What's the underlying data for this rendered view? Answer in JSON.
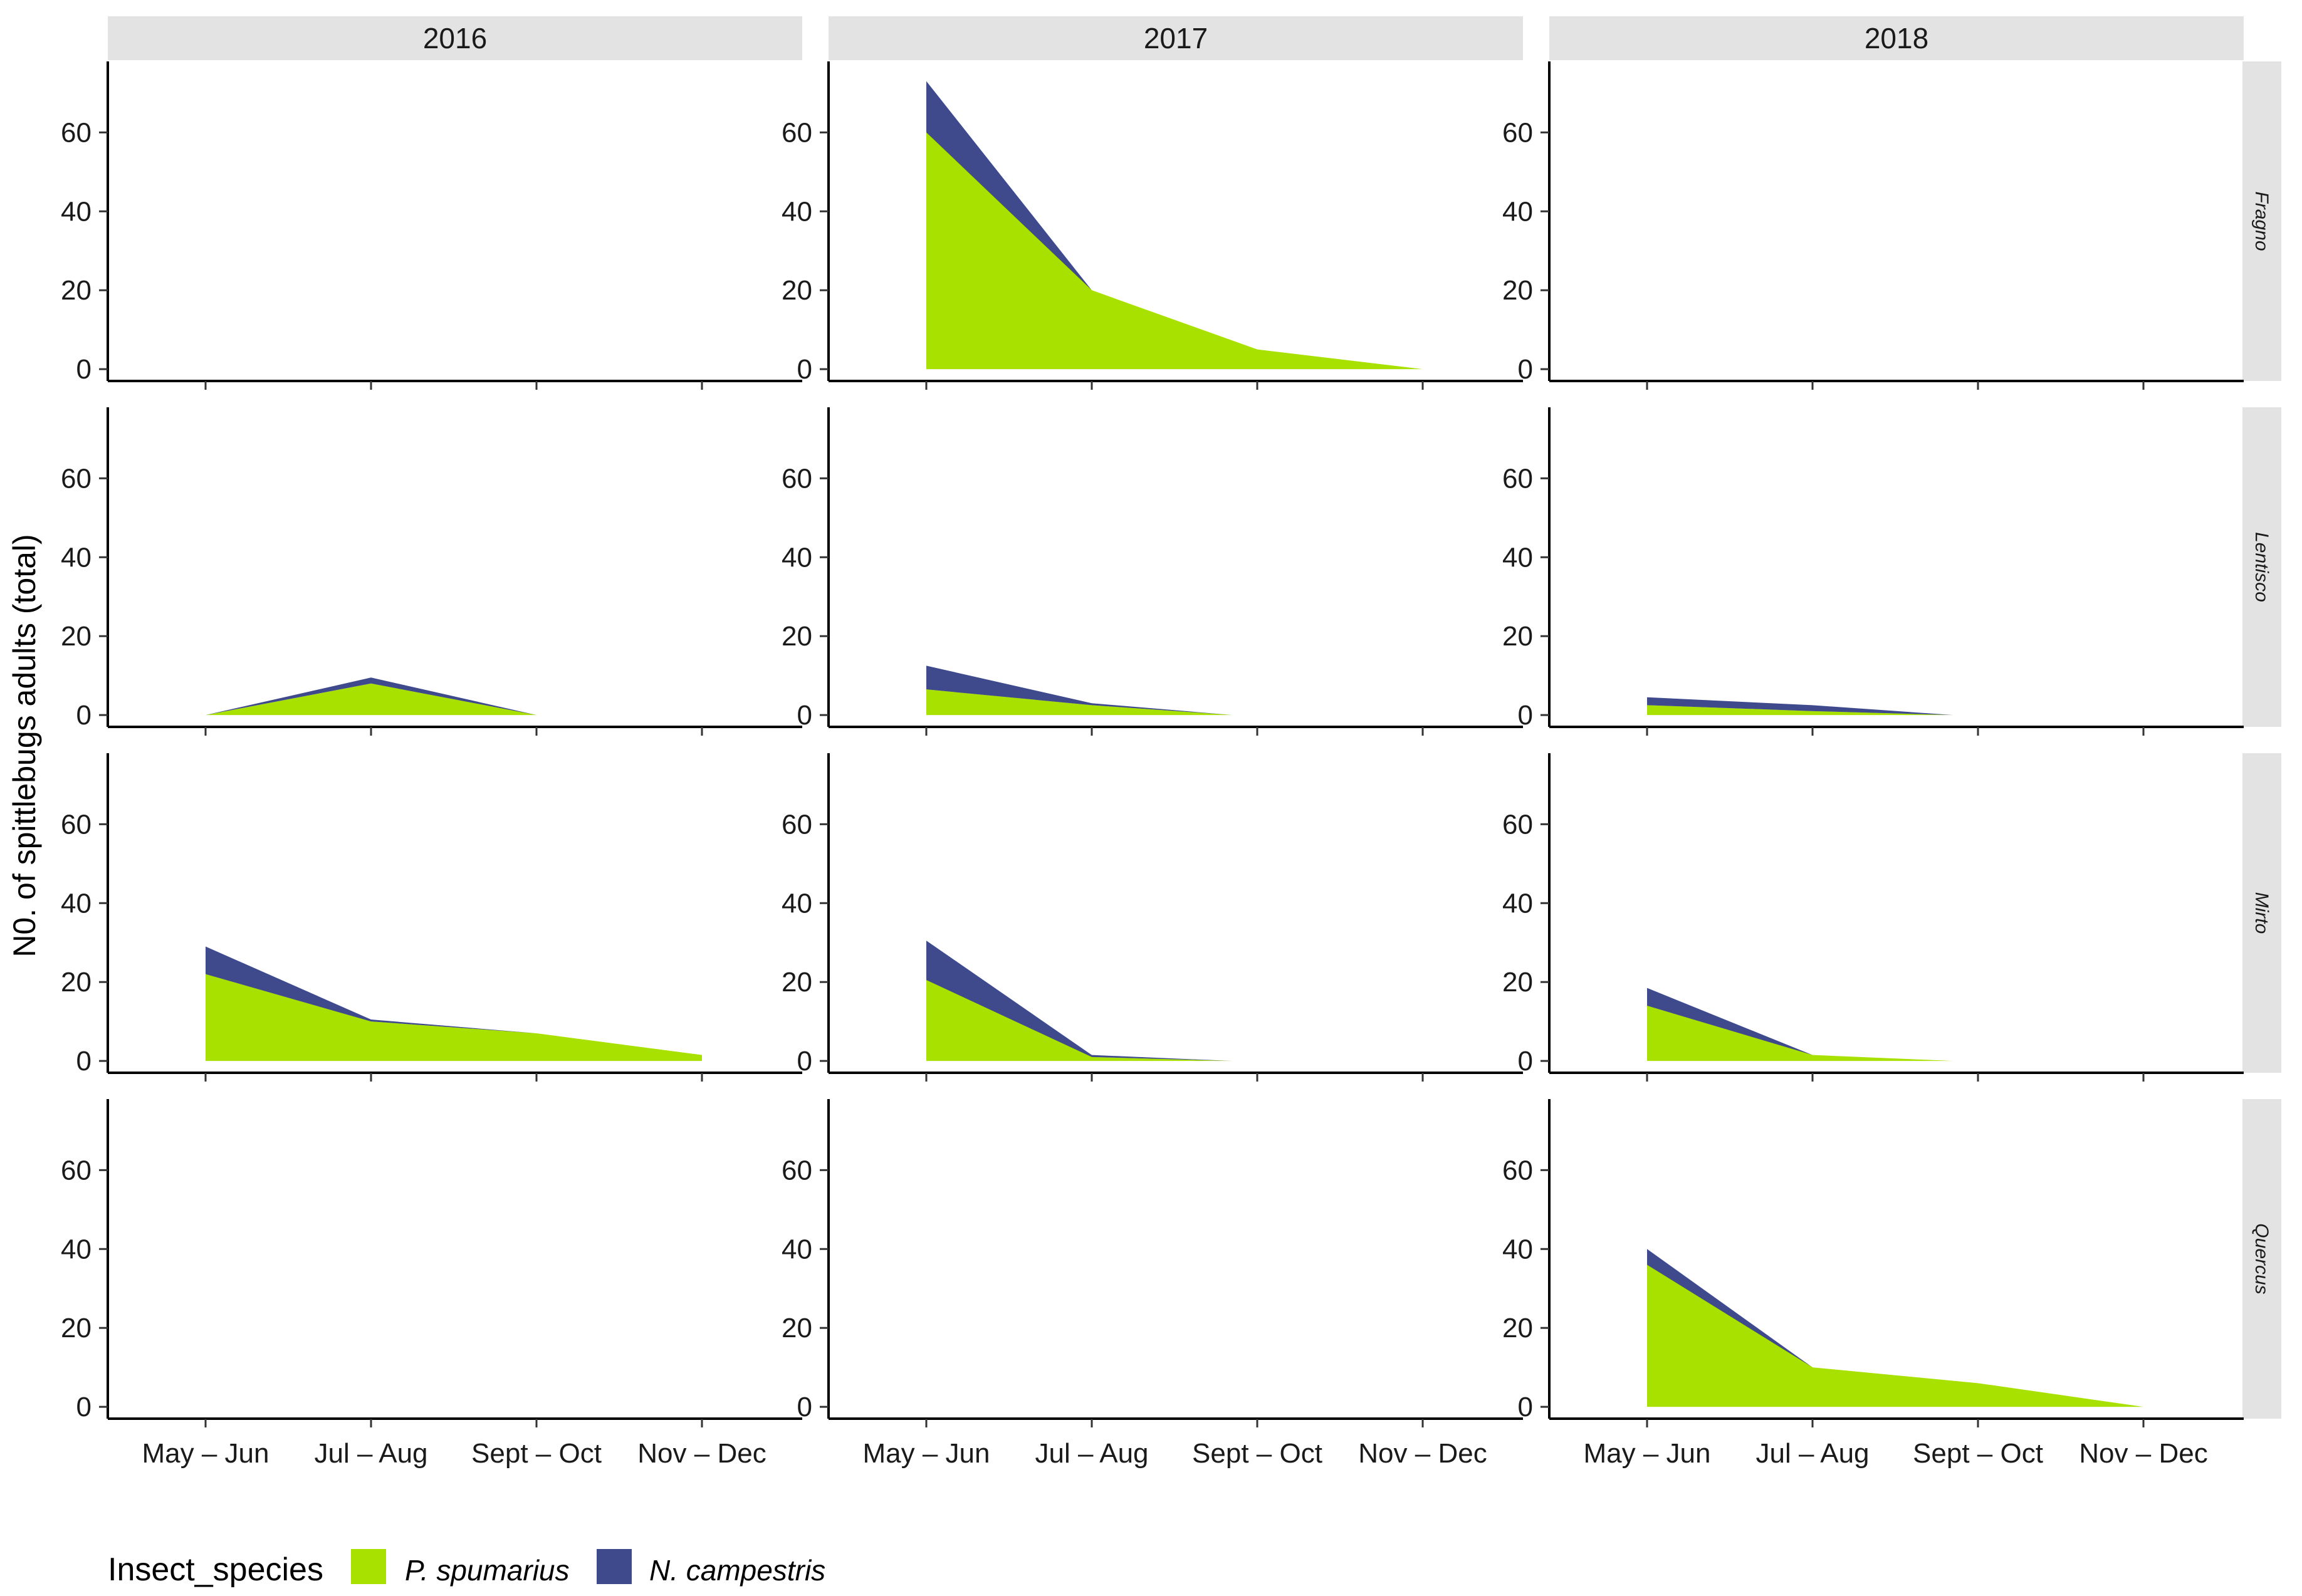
{
  "chart_data": {
    "type": "area",
    "stacked": true,
    "ylabel": "N0. of spittlebugs adults (total)",
    "xlabel": "",
    "categories": [
      "May – Jun",
      "Jul – Aug",
      "Sept – Oct",
      "Nov – Dec"
    ],
    "yticks": [
      0,
      20,
      40,
      60
    ],
    "ylim": [
      -3,
      78
    ],
    "facet_cols": [
      "2016",
      "2017",
      "2018"
    ],
    "facet_rows": [
      "Fragno",
      "Lentisco",
      "Mirto",
      "Quercus"
    ],
    "legend": {
      "title": "Insect_species",
      "position": "bottom-left",
      "items": [
        {
          "name": "P. spumarius",
          "color": "#a8e000"
        },
        {
          "name": "N. campestris",
          "color": "#3f4a8c"
        }
      ]
    },
    "panels": [
      {
        "row": "Fragno",
        "col": "2016",
        "series": []
      },
      {
        "row": "Fragno",
        "col": "2017",
        "series": [
          {
            "name": "P. spumarius",
            "x": [
              1,
              2,
              3,
              4
            ],
            "values": [
              60,
              20,
              5,
              0
            ]
          },
          {
            "name": "N. campestris",
            "x": [
              1,
              2,
              3,
              4
            ],
            "values": [
              13,
              0,
              0,
              0
            ]
          }
        ]
      },
      {
        "row": "Fragno",
        "col": "2018",
        "series": []
      },
      {
        "row": "Lentisco",
        "col": "2016",
        "series": [
          {
            "name": "P. spumarius",
            "x": [
              1,
              2,
              3
            ],
            "values": [
              0,
              8,
              0
            ]
          },
          {
            "name": "N. campestris",
            "x": [
              1,
              2,
              3
            ],
            "values": [
              0,
              1.5,
              0
            ]
          }
        ]
      },
      {
        "row": "Lentisco",
        "col": "2017",
        "series": [
          {
            "name": "P. spumarius",
            "x": [
              1,
              2,
              2.85
            ],
            "values": [
              6.5,
              2.5,
              0
            ]
          },
          {
            "name": "N. campestris",
            "x": [
              1,
              2,
              2.85
            ],
            "values": [
              6,
              0.5,
              0
            ]
          }
        ]
      },
      {
        "row": "Lentisco",
        "col": "2018",
        "series": [
          {
            "name": "P. spumarius",
            "x": [
              1,
              2,
              2.85
            ],
            "values": [
              2.5,
              1,
              0
            ]
          },
          {
            "name": "N. campestris",
            "x": [
              1,
              2,
              2.85
            ],
            "values": [
              2,
              1.5,
              0
            ]
          }
        ]
      },
      {
        "row": "Mirto",
        "col": "2016",
        "series": [
          {
            "name": "P. spumarius",
            "x": [
              1,
              2,
              3,
              4
            ],
            "values": [
              22,
              10,
              7,
              1.5
            ]
          },
          {
            "name": "N. campestris",
            "x": [
              1,
              2,
              3,
              4
            ],
            "values": [
              7,
              0.5,
              0,
              0
            ]
          }
        ]
      },
      {
        "row": "Mirto",
        "col": "2017",
        "series": [
          {
            "name": "P. spumarius",
            "x": [
              1,
              2,
              2.85
            ],
            "values": [
              20.5,
              1,
              0
            ]
          },
          {
            "name": "N. campestris",
            "x": [
              1,
              2,
              2.85
            ],
            "values": [
              10,
              0.5,
              0
            ]
          }
        ]
      },
      {
        "row": "Mirto",
        "col": "2018",
        "series": [
          {
            "name": "P. spumarius",
            "x": [
              1,
              2,
              2.85
            ],
            "values": [
              14,
              1.5,
              0
            ]
          },
          {
            "name": "N. campestris",
            "x": [
              1,
              2,
              2.85
            ],
            "values": [
              4.5,
              0,
              0
            ]
          }
        ]
      },
      {
        "row": "Quercus",
        "col": "2016",
        "series": []
      },
      {
        "row": "Quercus",
        "col": "2017",
        "series": []
      },
      {
        "row": "Quercus",
        "col": "2018",
        "series": [
          {
            "name": "P. spumarius",
            "x": [
              1,
              2,
              3,
              4
            ],
            "values": [
              36,
              10,
              6,
              0
            ]
          },
          {
            "name": "N. campestris",
            "x": [
              1,
              2,
              3,
              4
            ],
            "values": [
              4,
              0,
              0,
              0
            ]
          }
        ]
      }
    ]
  }
}
